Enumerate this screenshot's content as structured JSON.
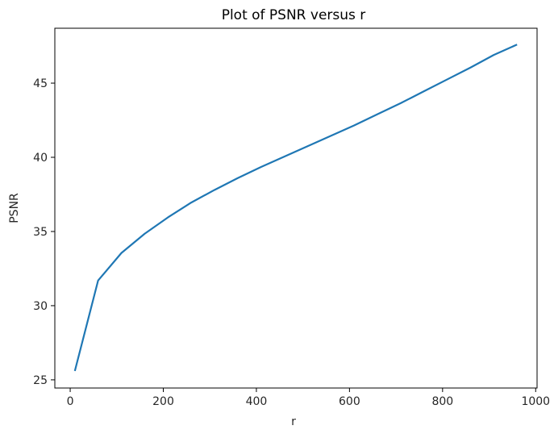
{
  "chart_data": {
    "type": "line",
    "title": "Plot of PSNR versus r",
    "xlabel": "r",
    "ylabel": "PSNR",
    "xlim": [
      -33,
      1003
    ],
    "ylim": [
      24.45,
      48.7
    ],
    "xticks": [
      0,
      200,
      400,
      600,
      800,
      1000
    ],
    "yticks": [
      25,
      30,
      35,
      40,
      45
    ],
    "grid": false,
    "series": [
      {
        "color": "#1f77b4",
        "x": [
          10,
          60,
          110,
          160,
          210,
          260,
          310,
          360,
          410,
          460,
          510,
          560,
          610,
          660,
          710,
          760,
          810,
          860,
          910,
          960
        ],
        "y": [
          25.6,
          31.7,
          33.55,
          34.85,
          35.95,
          36.95,
          37.8,
          38.6,
          39.35,
          40.05,
          40.75,
          41.45,
          42.15,
          42.9,
          43.65,
          44.45,
          45.25,
          46.05,
          46.9,
          47.6
        ]
      }
    ]
  }
}
